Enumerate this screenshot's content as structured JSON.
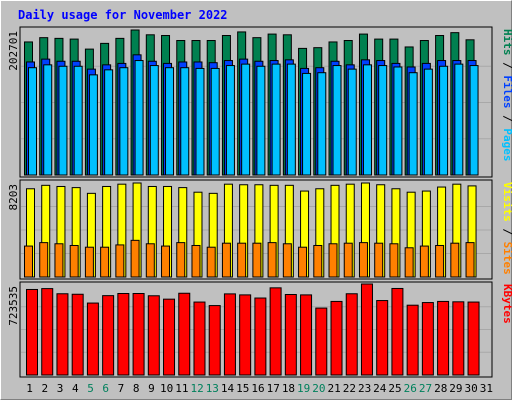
{
  "chart_data": {
    "type": "bar",
    "title": "Daily usage for November 2022",
    "days": [
      "1",
      "2",
      "3",
      "4",
      "5",
      "6",
      "7",
      "8",
      "9",
      "10",
      "11",
      "12",
      "13",
      "14",
      "15",
      "16",
      "17",
      "18",
      "19",
      "20",
      "21",
      "22",
      "23",
      "24",
      "25",
      "26",
      "27",
      "28",
      "29",
      "30",
      "31"
    ],
    "weekend_days": [
      "5",
      "6",
      "12",
      "13",
      "19",
      "20",
      "26",
      "27"
    ],
    "panels": [
      {
        "id": "hits_files_pages",
        "max_label": "202701",
        "ymax": 202701,
        "legend": [
          {
            "text": "Pages",
            "color": "#00c0ff"
          },
          {
            "text": "Files",
            "color": "#0040ff"
          },
          {
            "text": "Hits",
            "color": "#008050"
          }
        ],
        "series": [
          {
            "name": "Hits",
            "color": "#008050",
            "values": [
              186000,
              192000,
              191000,
              190000,
              176000,
              184000,
              191000,
              202701,
              196000,
              195000,
              188000,
              188000,
              188000,
              195000,
              200000,
              192000,
              197000,
              196000,
              177000,
              178000,
              186000,
              188000,
              197000,
              190000,
              190000,
              179000,
              188000,
              195000,
              199000,
              189000,
              null
            ]
          },
          {
            "name": "Files",
            "color": "#0040ff",
            "values": [
              158000,
              162000,
              159000,
              159000,
              148000,
              154000,
              156000,
              168000,
              159000,
              156000,
              158000,
              158000,
              157000,
              160000,
              162000,
              159000,
              160000,
              161000,
              149000,
              150000,
              159000,
              154000,
              161000,
              160000,
              156000,
              151000,
              156000,
              160000,
              160000,
              160000,
              null
            ]
          },
          {
            "name": "Pages",
            "color": "#00c0ff",
            "values": [
              150000,
              154000,
              152000,
              152000,
              140000,
              147000,
              150000,
              160000,
              153000,
              150000,
              150000,
              149000,
              149000,
              153000,
              155000,
              152000,
              155000,
              155000,
              142000,
              143000,
              153000,
              148000,
              154000,
              153000,
              151000,
              143000,
              148000,
              152000,
              155000,
              153000,
              null
            ]
          }
        ]
      },
      {
        "id": "visits_sites",
        "max_label": "8203",
        "ymax": 8203,
        "legend": [
          {
            "text": "Sites",
            "color": "#ff8000"
          },
          {
            "text": "Visits",
            "color": "#ffff00"
          }
        ],
        "series": [
          {
            "name": "Visits",
            "color": "#ffff00",
            "values": [
              7700,
              8000,
              7900,
              7800,
              7300,
              7900,
              8100,
              8203,
              7900,
              7900,
              7800,
              7400,
              7300,
              8100,
              8050,
              8050,
              8000,
              8000,
              7500,
              7700,
              8000,
              8100,
              8203,
              8050,
              7700,
              7400,
              7500,
              7850,
              8100,
              7950,
              null
            ]
          },
          {
            "name": "Sites",
            "color": "#ff8000",
            "values": [
              2700,
              3000,
              2900,
              2750,
              2600,
              2600,
              2800,
              3200,
              2900,
              2700,
              3000,
              2750,
              2600,
              2950,
              2950,
              2950,
              3000,
              2900,
              2600,
              2750,
              2900,
              2950,
              3000,
              2950,
              2900,
              2550,
              2700,
              2750,
              2950,
              3000,
              null
            ]
          }
        ]
      },
      {
        "id": "kbytes",
        "max_label": "723535",
        "ymax": 723535,
        "legend": [
          {
            "text": "KBytes",
            "color": "#ff0000"
          }
        ],
        "series": [
          {
            "name": "KBytes",
            "color": "#ff0000",
            "values": [
              680000,
              687000,
              646000,
              642000,
              572000,
              631000,
              648000,
              648000,
              630000,
              603000,
              650000,
              580000,
              552000,
              645000,
              637000,
              612000,
              693000,
              640000,
              637000,
              532000,
              585000,
              646000,
              723535,
              592000,
              688000,
              555000,
              576000,
              585000,
              582000,
              580000,
              null
            ]
          }
        ]
      }
    ]
  }
}
